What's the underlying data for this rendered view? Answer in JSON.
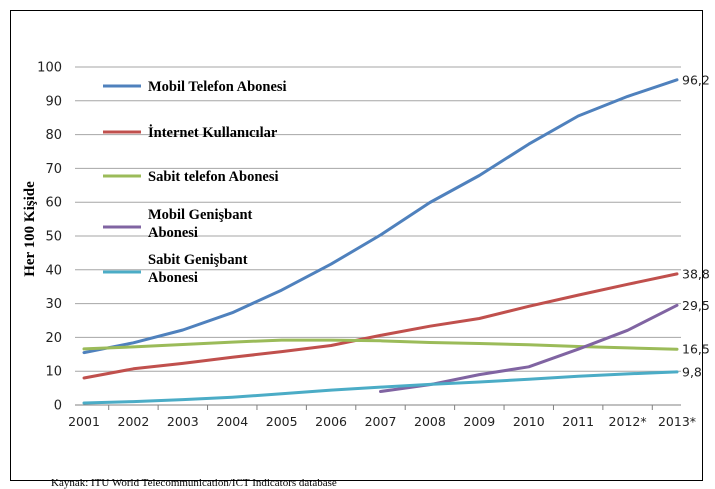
{
  "chart_data": {
    "type": "line",
    "ylabel": "Her 100 Kişide",
    "ylim": [
      0,
      100
    ],
    "yticks": [
      0,
      10,
      20,
      30,
      40,
      50,
      60,
      70,
      80,
      90,
      100
    ],
    "grid": true,
    "legend_position": "top-left",
    "categories": [
      "2001",
      "2002",
      "2003",
      "2004",
      "2005",
      "2006",
      "2007",
      "2008",
      "2009",
      "2010",
      "2011",
      "2012*",
      "2013*"
    ],
    "series": [
      {
        "name": "Mobil Telefon Abonesi",
        "color": "#4F81BD",
        "values": [
          15.5,
          18.4,
          22.2,
          27.3,
          34.0,
          41.7,
          50.3,
          59.9,
          67.9,
          77.2,
          85.5,
          91.3,
          96.2
        ],
        "end_label": "96,2"
      },
      {
        "name": "İnternet Kullanıcılar",
        "color": "#C0504D",
        "values": [
          8.0,
          10.7,
          12.3,
          14.1,
          15.8,
          17.6,
          20.6,
          23.3,
          25.6,
          29.2,
          32.5,
          35.7,
          38.8
        ],
        "end_label": "38,8"
      },
      {
        "name": "Sabit telefon Abonesi",
        "color": "#9BBB59",
        "values": [
          16.6,
          17.2,
          17.9,
          18.6,
          19.2,
          19.2,
          19.0,
          18.5,
          18.2,
          17.8,
          17.3,
          16.9,
          16.5
        ],
        "end_label": "16,5"
      },
      {
        "name": "Mobil Genişbant Abonesi",
        "color": "#8064A2",
        "values": [
          null,
          null,
          null,
          null,
          null,
          null,
          4.0,
          6.0,
          9.0,
          11.3,
          16.5,
          22.1,
          29.5
        ],
        "end_label": "29,5"
      },
      {
        "name": "Sabit Genişbant Abonesi",
        "color": "#4BACC6",
        "values": [
          0.6,
          1.0,
          1.6,
          2.3,
          3.3,
          4.4,
          5.3,
          6.1,
          6.8,
          7.6,
          8.5,
          9.2,
          9.8
        ],
        "end_label": "9,8"
      }
    ]
  },
  "legend": [
    {
      "lines": [
        "Mobil Telefon Abonesi"
      ]
    },
    {
      "lines": [
        "İnternet Kullanıcılar"
      ]
    },
    {
      "lines": [
        "Sabit telefon Abonesi"
      ]
    },
    {
      "lines": [
        "Mobil Genişbant",
        "Abonesi"
      ]
    },
    {
      "lines": [
        "Sabit Genişbant",
        "Abonesi"
      ]
    }
  ],
  "source": "Kaynak: ITU World Telecommunication/ICT Indicators database"
}
